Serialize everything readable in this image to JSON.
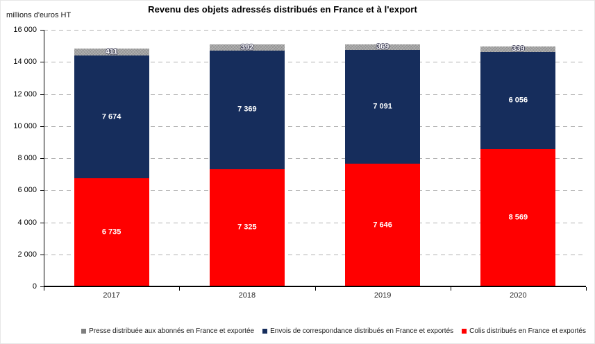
{
  "header": {
    "title": "Revenu des objets adressés distribués en France et à l'export",
    "unit_label": "millions d'euros HT"
  },
  "chart_data": {
    "type": "bar",
    "stacked": true,
    "title": "Revenu des objets adressés distribués en France et à l'export",
    "ylabel": "millions d'euros HT",
    "categories": [
      "2017",
      "2018",
      "2019",
      "2020"
    ],
    "series": [
      {
        "name": "Colis distribués en France et exportés",
        "color": "#FF0000",
        "values": [
          6735,
          7325,
          7646,
          8569
        ],
        "labels": [
          "6 735",
          "7 325",
          "7 646",
          "8 569"
        ],
        "pattern": false
      },
      {
        "name": "Envois de correspondance distribués en France et exportés",
        "color": "#162D5C",
        "values": [
          7674,
          7369,
          7091,
          6056
        ],
        "labels": [
          "7 674",
          "7 369",
          "7 091",
          "6 056"
        ],
        "pattern": false
      },
      {
        "name": "Presse distribuée aux abonnés en France et exportée",
        "color": "#A4A4A4",
        "values": [
          411,
          392,
          369,
          339
        ],
        "labels": [
          "411",
          "392",
          "369",
          "339"
        ],
        "pattern": true
      }
    ],
    "legend": [
      {
        "label": "Presse distribuée aux abonnés en France et exportée",
        "color": "#7F7F7F"
      },
      {
        "label": "Envois de correspondance distribués en France et exportés",
        "color": "#162D5C"
      },
      {
        "label": "Colis distribués en France et exportés",
        "color": "#FF0000"
      }
    ],
    "ylim": [
      0,
      16000
    ],
    "ytick_step": 2000,
    "ytick_labels": [
      "0",
      "2 000",
      "4 000",
      "6 000",
      "8 000",
      "10 000",
      "12 000",
      "14 000",
      "16 000"
    ],
    "grid": "horizontal-dashed",
    "legend_position": "bottom"
  }
}
